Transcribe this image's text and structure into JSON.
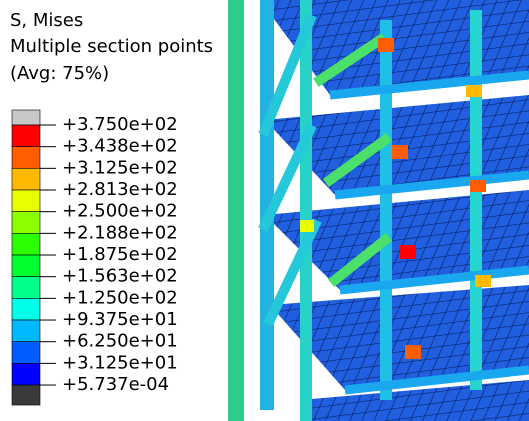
{
  "legend": {
    "title": [
      "S, Mises",
      "Multiple section points",
      "(Avg: 75%)"
    ],
    "labels": [
      "+3.750e+02",
      "+3.438e+02",
      "+3.125e+02",
      "+2.813e+02",
      "+2.500e+02",
      "+2.188e+02",
      "+1.875e+02",
      "+1.563e+02",
      "+1.250e+02",
      "+9.375e+01",
      "+6.250e+01",
      "+3.125e+01",
      "+5.737e-04"
    ],
    "colors": [
      "#c8c8c8",
      "#ff0000",
      "#ff5d00",
      "#ffb900",
      "#e8ff00",
      "#8bff00",
      "#2eff00",
      "#00ff2e",
      "#00ff8b",
      "#00ffe8",
      "#00b9ff",
      "#005dff",
      "#0000ff",
      "#3a3a3a"
    ]
  }
}
